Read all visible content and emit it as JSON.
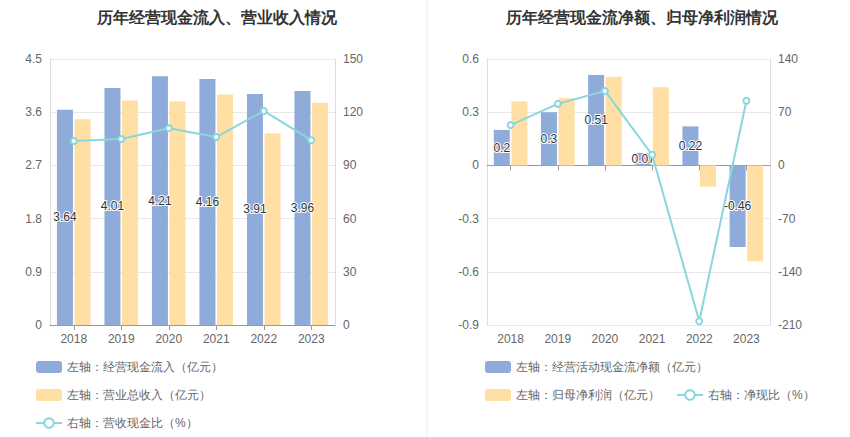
{
  "chart_data": [
    {
      "type": "bar",
      "title": "历年经营现金流入、营业收入情况",
      "categories": [
        "2018",
        "2019",
        "2020",
        "2021",
        "2022",
        "2023"
      ],
      "ylim": [
        0,
        4.5
      ],
      "yticks": [
        0,
        0.9,
        1.8,
        2.7,
        3.6,
        4.5
      ],
      "y2lim": [
        0,
        150
      ],
      "y2ticks": [
        0,
        30,
        60,
        90,
        120,
        150
      ],
      "grid": true,
      "legend": "bottom",
      "series": [
        {
          "name": "左轴：经营现金流入（亿元）",
          "type": "bar",
          "color": "#8eabd9",
          "data_labels": true,
          "values": [
            3.64,
            4.01,
            4.21,
            4.16,
            3.91,
            3.96
          ]
        },
        {
          "name": "左轴：营业总收入（亿元）",
          "type": "bar",
          "color": "#ffdfa3",
          "data_labels": false,
          "values": [
            3.48,
            3.8,
            3.78,
            3.9,
            3.24,
            3.76
          ]
        },
        {
          "name": "右轴：营收现金比（%）",
          "type": "line",
          "axis": "y2",
          "color": "#8ad6de",
          "marker": "emptyCircle",
          "line_style": "solid",
          "data_labels": false,
          "values": [
            103.8,
            104.9,
            111.0,
            106.0,
            120.7,
            104.2
          ]
        }
      ]
    },
    {
      "type": "bar",
      "title": "历年经营现金流净额、归母净利润情况",
      "categories": [
        "2018",
        "2019",
        "2020",
        "2021",
        "2022",
        "2023"
      ],
      "ylim": [
        -0.9,
        0.6
      ],
      "yticks": [
        -0.9,
        -0.6,
        -0.3,
        0,
        0.3,
        0.6
      ],
      "y2lim": [
        -210,
        140
      ],
      "y2ticks": [
        -210,
        -140,
        -70,
        0,
        70,
        140
      ],
      "grid": true,
      "legend": "bottom",
      "series": [
        {
          "name": "左轴：经营活动现金流净额（亿元）",
          "type": "bar",
          "color": "#8eabd9",
          "data_labels": true,
          "values": [
            0.2,
            0.3,
            0.51,
            0.07,
            0.22,
            -0.46
          ]
        },
        {
          "name": "左轴：归母净利润（亿元）",
          "type": "bar",
          "color": "#ffdfa3",
          "data_labels": false,
          "values": [
            0.36,
            0.38,
            0.5,
            0.44,
            -0.12,
            -0.54
          ]
        },
        {
          "name": "右轴：净现比（%）",
          "type": "line",
          "axis": "y2",
          "color": "#8ad6de",
          "marker": "emptyCircle",
          "line_style": "solid",
          "data_labels": false,
          "values": [
            53,
            81,
            98,
            14,
            -205,
            85
          ]
        }
      ]
    }
  ]
}
